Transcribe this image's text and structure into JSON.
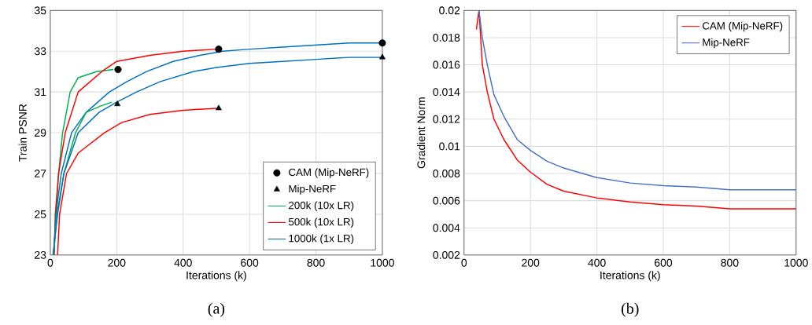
{
  "chart_data": [
    {
      "type": "line",
      "xlabel": "Iterations (k)",
      "ylabel": "Train PSNR",
      "xlim": [
        0,
        1000
      ],
      "ylim": [
        23,
        35
      ],
      "xticks": [
        0,
        200,
        400,
        600,
        800,
        1000
      ],
      "yticks": [
        23,
        25,
        27,
        29,
        31,
        33,
        35
      ],
      "grid": true,
      "legend": "bottom right",
      "annotations": [
        "(a)"
      ],
      "series": [
        {
          "name": "CAM (Mip-NeRF)",
          "type": "scatter",
          "marker": "circle",
          "color": "#000000",
          "x": [
            204,
            507,
            1000
          ],
          "values": [
            32.1,
            33.1,
            33.4
          ]
        },
        {
          "name": "Mip-NeRF",
          "type": "scatter",
          "marker": "triangle",
          "color": "#000000",
          "x": [
            202,
            507,
            1000
          ],
          "values": [
            30.4,
            30.2,
            32.7
          ]
        },
        {
          "name": "200k (10x LR)",
          "type": "line",
          "color": "#00b050",
          "x": [
            10,
            25,
            37,
            60,
            84,
            139,
            190
          ],
          "values": [
            23,
            27,
            29,
            31,
            31.7,
            32,
            32.1
          ]
        },
        {
          "name": "500k (10x LR)",
          "type": "line",
          "color": "#ff0000",
          "x": [
            12,
            15,
            25,
            45,
            84,
            155,
            200,
            300,
            400,
            500
          ],
          "values": [
            23,
            25,
            27,
            29,
            31,
            32,
            32.5,
            32.8,
            33,
            33.1
          ]
        },
        {
          "name": "1000k (1x LR)",
          "type": "line",
          "color": "#0070c0",
          "x": [
            10,
            17,
            33,
            64,
            108,
            178,
            230,
            290,
            370,
            450,
            520,
            600,
            700,
            800,
            900,
            1000
          ],
          "values": [
            23,
            25,
            27,
            29,
            30,
            31,
            31.5,
            32,
            32.5,
            32.8,
            33,
            33.1,
            33.2,
            33.3,
            33.4,
            33.4
          ]
        },
        {
          "type": "line",
          "color": "#00b050",
          "x": [
            10,
            20,
            41,
            76,
            108,
            150,
            185
          ],
          "values": [
            23,
            25,
            27,
            29,
            30,
            30.3,
            30.5
          ]
        },
        {
          "type": "line",
          "color": "#ff0000",
          "x": [
            22,
            28,
            49,
            84,
            163,
            215,
            300,
            400,
            500
          ],
          "values": [
            23,
            25,
            27,
            28,
            29,
            29.5,
            29.9,
            30.1,
            30.2
          ]
        },
        {
          "type": "line",
          "color": "#0070c0",
          "x": [
            8,
            22,
            41,
            84,
            147,
            200,
            260,
            330,
            430,
            500,
            600,
            700,
            800,
            900,
            1000
          ],
          "values": [
            23,
            25,
            27,
            29,
            30,
            30.5,
            31,
            31.5,
            32,
            32.2,
            32.4,
            32.5,
            32.6,
            32.7,
            32.7
          ]
        }
      ]
    },
    {
      "type": "line",
      "xlabel": "Iterations (k)",
      "ylabel": "Gradient Norm",
      "xlim": [
        0,
        1000
      ],
      "ylim": [
        0.002,
        0.02
      ],
      "xticks": [
        0,
        200,
        400,
        600,
        800,
        1000
      ],
      "yticks": [
        0.002,
        0.004,
        0.006,
        0.008,
        0.01,
        0.012,
        0.014,
        0.016,
        0.018,
        0.02
      ],
      "grid": true,
      "legend": "top right",
      "annotations": [
        "(b)"
      ],
      "series": [
        {
          "name": "CAM (Mip-NeRF)",
          "color": "#ff0000",
          "x": [
            37,
            45,
            55,
            70,
            90,
            120,
            160,
            200,
            250,
            300,
            400,
            500,
            600,
            700,
            800,
            900,
            1000
          ],
          "values": [
            0.0186,
            0.02,
            0.016,
            0.014,
            0.012,
            0.0105,
            0.009,
            0.0081,
            0.0072,
            0.0067,
            0.0062,
            0.0059,
            0.0057,
            0.0056,
            0.0054,
            0.0054,
            0.0054
          ]
        },
        {
          "name": "Mip-NeRF",
          "color": "#4472c4",
          "x": [
            45,
            55,
            70,
            90,
            120,
            160,
            200,
            250,
            300,
            400,
            500,
            600,
            700,
            800,
            900,
            1000
          ],
          "values": [
            0.02,
            0.018,
            0.016,
            0.0138,
            0.0122,
            0.0105,
            0.0097,
            0.0089,
            0.0084,
            0.0077,
            0.0073,
            0.0071,
            0.007,
            0.0068,
            0.0068,
            0.0068
          ]
        }
      ]
    }
  ]
}
